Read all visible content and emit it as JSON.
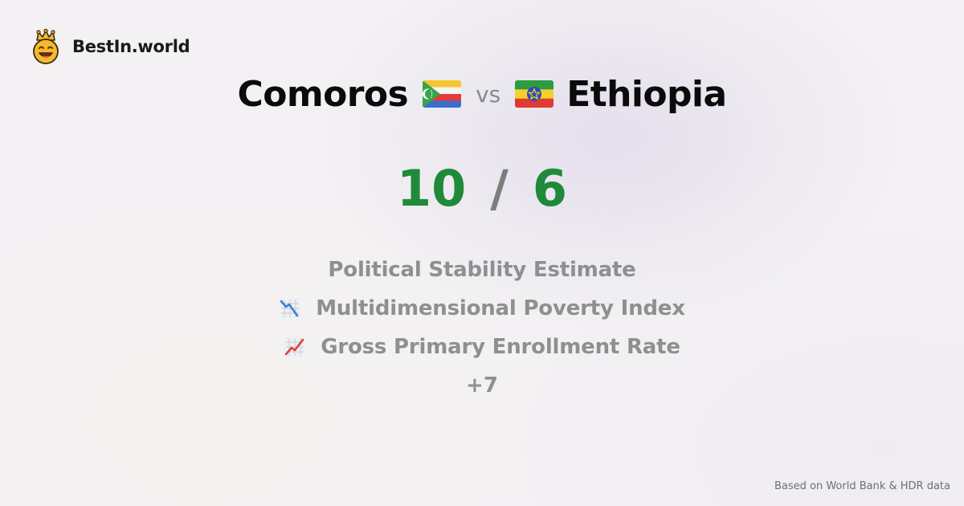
{
  "brand": {
    "name": "BestIn.world",
    "logo_icon": "crowned-smiley-icon"
  },
  "comparison": {
    "left_country": "Comoros",
    "left_flag_icon": "comoros-flag-icon",
    "vs_label": "vs",
    "right_country": "Ethiopia",
    "right_flag_icon": "ethiopia-flag-icon"
  },
  "score": {
    "left": "10",
    "separator": "/",
    "right": "6"
  },
  "metrics": [
    {
      "label": "Political Stability Estimate",
      "icon": ""
    },
    {
      "label": "Multidimensional Poverty Index",
      "icon": "chart-decreasing-icon"
    },
    {
      "label": "Gross Primary Enrollment Rate",
      "icon": "chart-increasing-icon"
    }
  ],
  "more_label": "+7",
  "footer": {
    "source": "Based on World Bank & HDR data"
  },
  "colors": {
    "score_green": "#1e8a3a",
    "muted_text": "#8f8f8f",
    "background": "#f3f1f3"
  }
}
